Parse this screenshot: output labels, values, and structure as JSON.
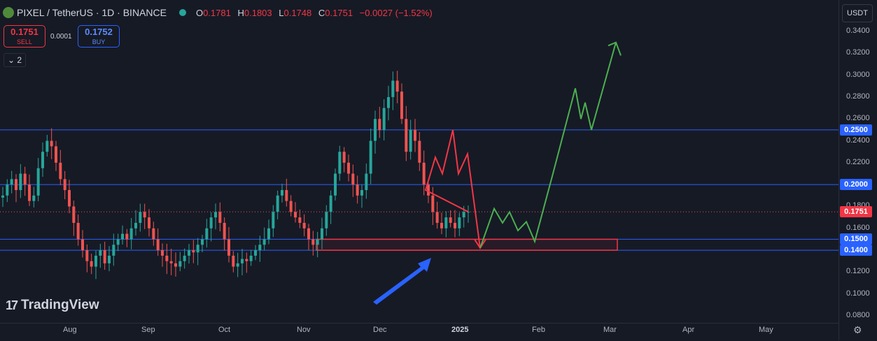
{
  "header": {
    "symbol": "PIXEL / TetherUS · 1D · BINANCE",
    "open_label": "O",
    "open": "0.1781",
    "high_label": "H",
    "high": "0.1803",
    "low_label": "L",
    "low": "0.1748",
    "close_label": "C",
    "close": "0.1751",
    "change": "−0.0027 (−1.52%)"
  },
  "trade": {
    "sell_price": "0.1751",
    "sell_label": "SELL",
    "spread": "0.0001",
    "buy_price": "0.1752",
    "buy_label": "BUY"
  },
  "indicators_toggle": "2",
  "currency": "USDT",
  "watermark": "TradingView",
  "colors": {
    "up": "#26a69a",
    "down": "#ef5350",
    "level": "#2962ff",
    "projection_up": "#4caf50",
    "projection_down": "#f23645",
    "arrow": "#2962ff"
  },
  "chart_data": {
    "type": "candlestick",
    "price_ticks": [
      "0.3400",
      "0.3200",
      "0.3000",
      "0.2800",
      "0.2600",
      "0.2400",
      "0.2200",
      "0.2000",
      "0.1800",
      "0.1600",
      "0.1400",
      "0.1200",
      "0.1000",
      "0.0800"
    ],
    "time_ticks": [
      {
        "label": "Aug",
        "bold": false
      },
      {
        "label": "Sep",
        "bold": false
      },
      {
        "label": "Oct",
        "bold": false
      },
      {
        "label": "Nov",
        "bold": false
      },
      {
        "label": "Dec",
        "bold": false
      },
      {
        "label": "2025",
        "bold": true
      },
      {
        "label": "Feb",
        "bold": false
      },
      {
        "label": "Mar",
        "bold": false
      },
      {
        "label": "Apr",
        "bold": false
      },
      {
        "label": "May",
        "bold": false
      }
    ],
    "horizontal_levels": [
      {
        "value": 0.25,
        "label": "0.2500"
      },
      {
        "value": 0.2,
        "label": "0.2000"
      },
      {
        "value": 0.15,
        "label": "0.1500"
      },
      {
        "value": 0.14,
        "label": "0.1400"
      }
    ],
    "last_price": {
      "value": 0.1751,
      "label": "0.1751"
    },
    "support_zone": {
      "from": 0.14,
      "to": 0.15
    },
    "closes": [
      0.19,
      0.2,
      0.205,
      0.195,
      0.21,
      0.2,
      0.185,
      0.19,
      0.215,
      0.23,
      0.24,
      0.235,
      0.22,
      0.205,
      0.195,
      0.18,
      0.165,
      0.15,
      0.14,
      0.13,
      0.125,
      0.135,
      0.14,
      0.128,
      0.135,
      0.145,
      0.15,
      0.155,
      0.15,
      0.16,
      0.165,
      0.175,
      0.17,
      0.16,
      0.15,
      0.14,
      0.135,
      0.13,
      0.128,
      0.125,
      0.13,
      0.135,
      0.14,
      0.138,
      0.145,
      0.15,
      0.16,
      0.17,
      0.175,
      0.165,
      0.15,
      0.135,
      0.125,
      0.128,
      0.132,
      0.13,
      0.135,
      0.14,
      0.145,
      0.15,
      0.16,
      0.175,
      0.19,
      0.195,
      0.185,
      0.175,
      0.17,
      0.165,
      0.16,
      0.15,
      0.145,
      0.15,
      0.16,
      0.175,
      0.19,
      0.21,
      0.23,
      0.22,
      0.21,
      0.2,
      0.19,
      0.195,
      0.21,
      0.24,
      0.26,
      0.25,
      0.27,
      0.28,
      0.295,
      0.285,
      0.26,
      0.23,
      0.25,
      0.24,
      0.22,
      0.2,
      0.19,
      0.175,
      0.165,
      0.16,
      0.17,
      0.165,
      0.16,
      0.17,
      0.175,
      0.1751
    ],
    "projection_red": [
      [
        0.1751,
        0.195
      ],
      [
        0.21,
        0.225
      ],
      [
        0.25,
        0.21
      ],
      [
        0.225,
        0.195
      ],
      [
        0.142,
        0.142
      ]
    ],
    "projection_green": [
      0.142,
      0.175,
      0.158,
      0.172,
      0.152,
      0.148,
      0.2,
      0.26,
      0.285,
      0.27,
      0.28,
      0.255,
      0.31,
      0.325
    ]
  }
}
